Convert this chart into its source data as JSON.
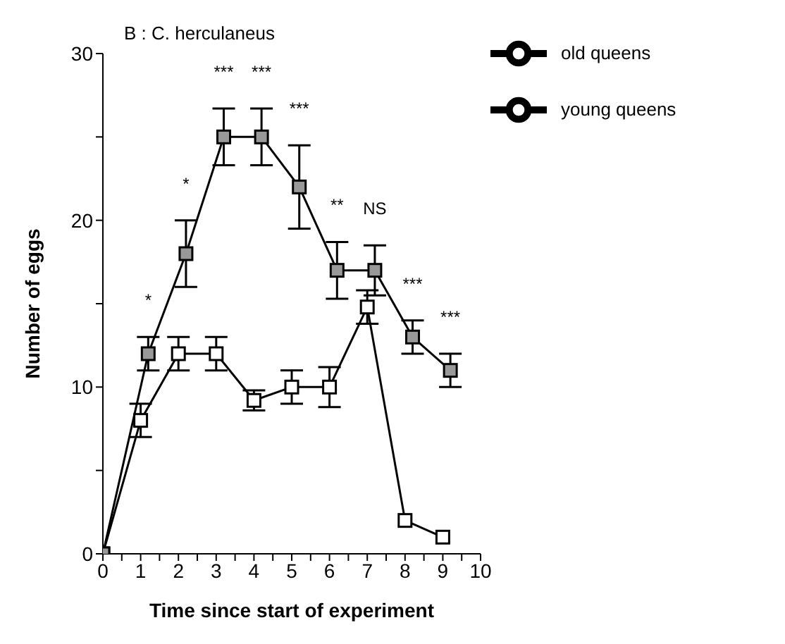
{
  "chart_data": {
    "type": "line",
    "title": "B : C. herculaneus",
    "xlabel": "Time since start of experiment",
    "ylabel": "Number of eggs",
    "xlim": [
      0,
      10
    ],
    "xticks": [
      0,
      {
        "value": 0.5,
        "label": null
      },
      1,
      {
        "value": 1.5,
        "label": null
      },
      2,
      {
        "value": 2.5,
        "label": null
      },
      3,
      {
        "value": 3.5,
        "label": null
      },
      4,
      {
        "value": 4.5,
        "label": null
      },
      5,
      {
        "value": 5.5,
        "label": null
      },
      6,
      {
        "value": 6.5,
        "label": null
      },
      7,
      {
        "value": 7.5,
        "label": null
      },
      8,
      {
        "value": 8.5,
        "label": null
      },
      9,
      {
        "value": 9.5,
        "label": null
      },
      10
    ],
    "ylim": [
      0,
      30
    ],
    "yticks": [
      0,
      {
        "value": 5,
        "label": null
      },
      10,
      {
        "value": 15,
        "label": null
      },
      20,
      {
        "value": 25,
        "label": null
      },
      30
    ],
    "legend": "top right",
    "marker": "square",
    "line_style": "solid",
    "series": [
      {
        "name": "young queens",
        "color": "#000000",
        "x": [
          0,
          1,
          2,
          3,
          4,
          5,
          6,
          7,
          8,
          9
        ],
        "values": [
          0,
          8,
          12,
          12,
          9.2,
          10,
          10,
          14.8,
          2,
          1
        ],
        "errors": [
          null,
          1,
          1,
          1,
          0.6,
          1,
          1.2,
          1,
          null,
          null
        ]
      },
      {
        "name": "old queens",
        "color": "#000000",
        "x": [
          0,
          1.2,
          2.2,
          3.2,
          4.2,
          5.2,
          6.2,
          7.2,
          8.2,
          9.2
        ],
        "values": [
          0,
          12,
          18,
          25,
          25,
          22,
          17,
          17,
          13,
          11
        ],
        "errors": [
          null,
          1,
          2,
          1.7,
          1.7,
          2.5,
          1.7,
          1.5,
          1,
          1
        ]
      }
    ],
    "annotations": [
      "*",
      "*",
      "***",
      "***",
      "***",
      "**",
      "NS",
      "***",
      "***"
    ]
  }
}
